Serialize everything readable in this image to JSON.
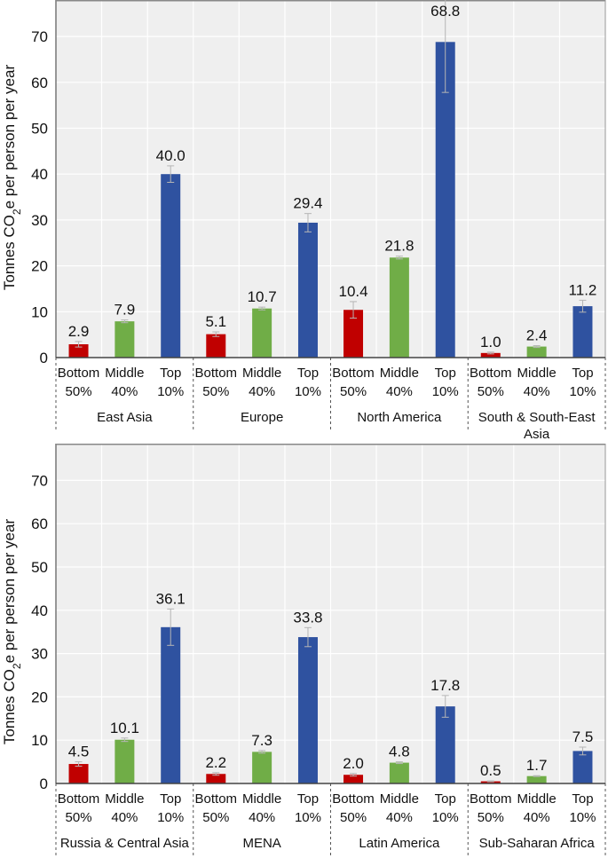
{
  "chart_data": [
    {
      "type": "bar",
      "title": "",
      "ylabel": "Tonnes CO2e per person per year",
      "ylabel_parts": {
        "pre": "Tonnes CO",
        "sub": "2",
        "post": "e per person per year"
      },
      "ylim": [
        0,
        77
      ],
      "yticks": [
        0,
        10,
        20,
        30,
        40,
        50,
        60,
        70
      ],
      "grid": true,
      "series_categories": [
        {
          "line1": "Bottom",
          "line2": "50%"
        },
        {
          "line1": "Middle",
          "line2": "40%"
        },
        {
          "line1": "Top",
          "line2": "10%"
        }
      ],
      "series_colors": [
        "#c00000",
        "#70ad47",
        "#2f52a0"
      ],
      "groups": [
        {
          "name": [
            "East Asia"
          ],
          "values": [
            2.9,
            7.9,
            40.0
          ],
          "labels": [
            "2.9",
            "7.9",
            "40.0"
          ],
          "err": [
            0.6,
            0.3,
            1.8
          ]
        },
        {
          "name": [
            "Europe"
          ],
          "values": [
            5.1,
            10.7,
            29.4
          ],
          "labels": [
            "5.1",
            "10.7",
            "29.4"
          ],
          "err": [
            0.5,
            0.3,
            2.0
          ]
        },
        {
          "name": [
            "North America"
          ],
          "values": [
            10.4,
            21.8,
            68.8
          ],
          "labels": [
            "10.4",
            "21.8",
            "68.8"
          ],
          "err": [
            1.8,
            0.3,
            11.0
          ]
        },
        {
          "name": [
            "South & South-East",
            "Asia"
          ],
          "values": [
            1.0,
            2.4,
            11.2
          ],
          "labels": [
            "1.0",
            "2.4",
            "11.2"
          ],
          "err": [
            0.2,
            0.2,
            1.3
          ]
        }
      ]
    },
    {
      "type": "bar",
      "title": "",
      "ylabel": "Tonnes CO2e per person per year",
      "ylabel_parts": {
        "pre": "Tonnes CO",
        "sub": "2",
        "post": "e per person per year"
      },
      "ylim": [
        0,
        78
      ],
      "yticks": [
        0,
        10,
        20,
        30,
        40,
        50,
        60,
        70
      ],
      "grid": true,
      "series_categories": [
        {
          "line1": "Bottom",
          "line2": "50%"
        },
        {
          "line1": "Middle",
          "line2": "40%"
        },
        {
          "line1": "Top",
          "line2": "10%"
        }
      ],
      "series_colors": [
        "#c00000",
        "#70ad47",
        "#2f52a0"
      ],
      "groups": [
        {
          "name": [
            "Russia & Central Asia"
          ],
          "values": [
            4.5,
            10.1,
            36.1
          ],
          "labels": [
            "4.5",
            "10.1",
            "36.1"
          ],
          "err": [
            0.5,
            0.4,
            4.2
          ]
        },
        {
          "name": [
            "MENA"
          ],
          "values": [
            2.2,
            7.3,
            33.8
          ],
          "labels": [
            "2.2",
            "7.3",
            "33.8"
          ],
          "err": [
            0.3,
            0.3,
            2.2
          ]
        },
        {
          "name": [
            "Latin America"
          ],
          "values": [
            2.0,
            4.8,
            17.8
          ],
          "labels": [
            "2.0",
            "4.8",
            "17.8"
          ],
          "err": [
            0.3,
            0.2,
            2.5
          ]
        },
        {
          "name": [
            "Sub-Saharan Africa"
          ],
          "values": [
            0.5,
            1.7,
            7.5
          ],
          "labels": [
            "0.5",
            "1.7",
            "7.5"
          ],
          "err": [
            0.1,
            0.1,
            0.9
          ]
        }
      ]
    }
  ]
}
